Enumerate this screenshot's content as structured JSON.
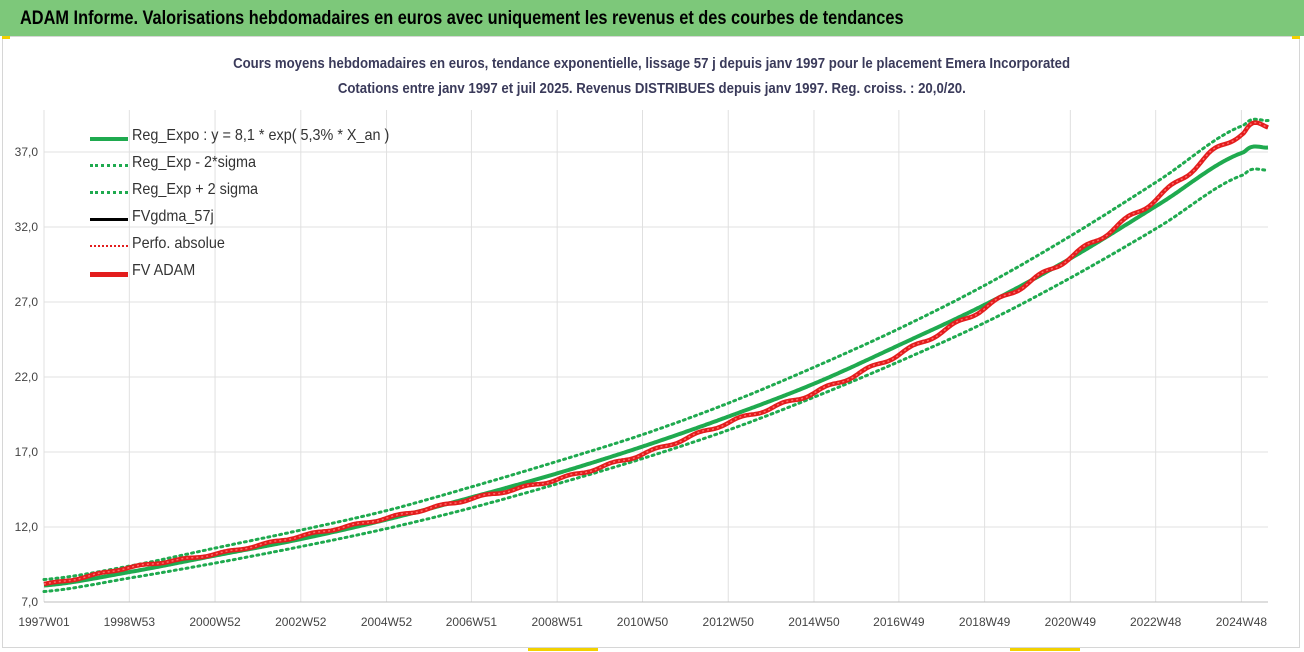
{
  "header": {
    "title": "ADAM Informe. Valorisations hebdomadaires en euros avec uniquement les revenus et des courbes de tendances"
  },
  "colors": {
    "header_bg": "#7dc87a",
    "green": "#1faa4f",
    "red": "#e31d1d",
    "black": "#000000",
    "grid": "#e0e0e0"
  },
  "chart_data": {
    "type": "line",
    "title": "Cours moyens hebdomadaires en euros, tendance exponentielle, lissage 57 j depuis janv 1997  pour le placement Emera Incorporated",
    "subtitle": "Cotations entre janv 1997 et juil 2025. Revenus DISTRIBUES depuis janv 1997. Reg. croiss. : 20,0/20.",
    "xlabel": "",
    "ylabel": "",
    "ylim": [
      7.0,
      39.0
    ],
    "y_ticks": [
      "7,0",
      "12,0",
      "17,0",
      "22,0",
      "27,0",
      "32,0",
      "37,0"
    ],
    "y_tick_values": [
      7,
      12,
      17,
      22,
      27,
      32,
      37
    ],
    "x_ticks": [
      "1997W01",
      "1998W53",
      "2000W52",
      "2002W52",
      "2004W52",
      "2006W51",
      "2008W51",
      "2010W50",
      "2012W50",
      "2014W50",
      "2016W49",
      "2018W49",
      "2020W49",
      "2022W48",
      "2024W48"
    ],
    "x_tick_years": [
      1997.0,
      1998.99,
      2000.99,
      2002.99,
      2004.99,
      2006.97,
      2008.97,
      2010.96,
      2012.96,
      2014.96,
      2016.94,
      2018.94,
      2020.94,
      2022.93,
      2024.93
    ],
    "grid": true,
    "legend_position": "top-left",
    "x": [
      1997.0,
      1999.0,
      2001.0,
      2003.0,
      2005.0,
      2007.0,
      2009.0,
      2011.0,
      2013.0,
      2015.0,
      2017.0,
      2019.0,
      2021.0,
      2023.0,
      2025.0,
      2025.55
    ],
    "series": [
      {
        "name": "Reg_Expo : y = 8,1 * exp( 5,3% *  X_an )",
        "style": "solid-green",
        "values": [
          8.1,
          9.0,
          10.1,
          11.2,
          12.5,
          14.0,
          15.6,
          17.4,
          19.4,
          21.6,
          24.2,
          26.9,
          30.0,
          33.5,
          37.0,
          37.3
        ]
      },
      {
        "name": "Reg_Exp - 2*sigma",
        "style": "dotted-green",
        "values": [
          7.7,
          8.6,
          9.6,
          10.7,
          11.9,
          13.3,
          14.9,
          16.6,
          18.5,
          20.7,
          23.1,
          25.7,
          28.7,
          32.0,
          35.5,
          35.8
        ]
      },
      {
        "name": "Reg_Exp + 2 sigma",
        "style": "dotted-green",
        "values": [
          8.5,
          9.4,
          10.6,
          11.8,
          13.1,
          14.7,
          16.4,
          18.2,
          20.3,
          22.7,
          25.3,
          28.2,
          31.5,
          35.1,
          38.8,
          39.1
        ]
      },
      {
        "name": "FVgdma_57j",
        "style": "solid-black",
        "values": [
          8.2,
          9.3,
          10.2,
          11.4,
          12.6,
          13.9,
          15.2,
          16.9,
          19.0,
          21.0,
          23.6,
          26.7,
          30.1,
          34.0,
          38.3,
          38.7
        ]
      },
      {
        "name": "Perfo. absolue",
        "style": "dotted-red",
        "values": [
          8.2,
          9.3,
          10.2,
          11.4,
          12.6,
          13.9,
          15.2,
          16.9,
          19.0,
          21.0,
          23.6,
          26.7,
          30.1,
          34.0,
          38.3,
          38.7
        ]
      },
      {
        "name": "FV ADAM",
        "style": "solid-red-thick",
        "values": [
          8.2,
          9.3,
          10.2,
          11.4,
          12.6,
          13.9,
          15.2,
          16.9,
          19.0,
          21.0,
          23.6,
          26.7,
          30.1,
          34.0,
          38.3,
          38.7
        ]
      }
    ]
  }
}
